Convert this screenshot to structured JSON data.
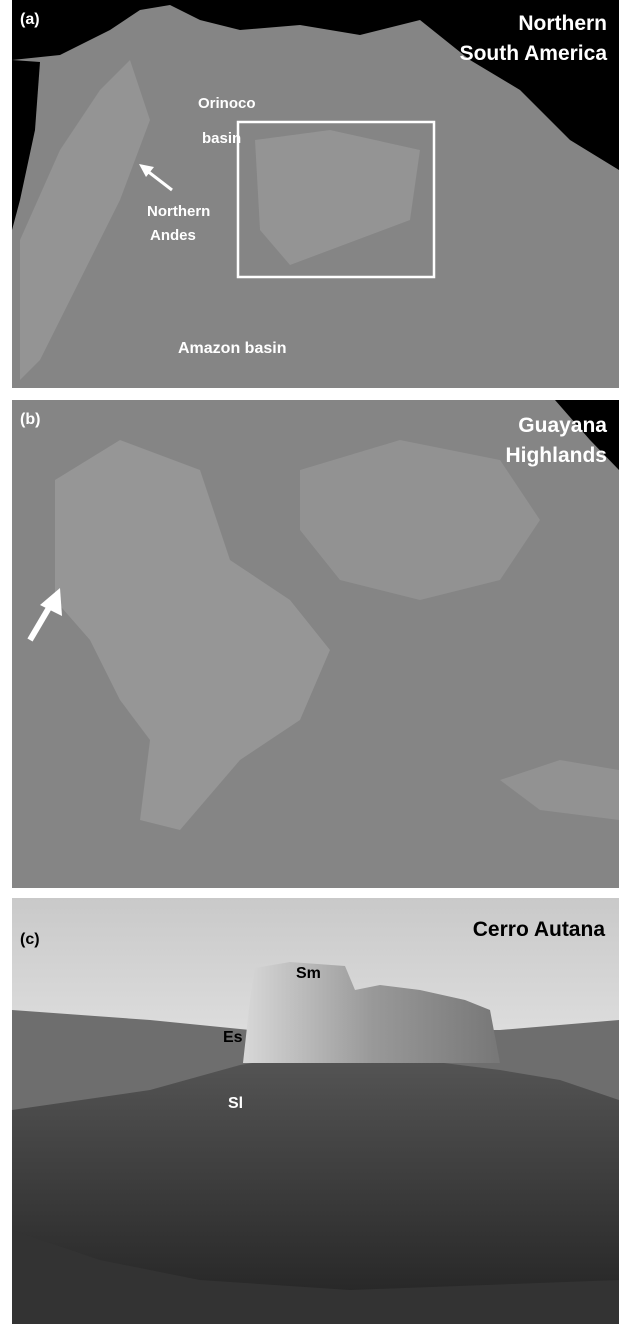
{
  "panels": [
    {
      "label": "(a)",
      "title": [
        "Northern",
        "South America"
      ],
      "annotations": [
        "Orinoco",
        "basin",
        "Northern",
        "Andes",
        "Amazon basin"
      ]
    },
    {
      "label": "(b)",
      "title": [
        "Guayana",
        "Highlands"
      ]
    },
    {
      "label": "(c)",
      "title": [
        "Cerro Autana"
      ],
      "annotations": [
        "Sm",
        "Es",
        "Sl"
      ]
    }
  ]
}
